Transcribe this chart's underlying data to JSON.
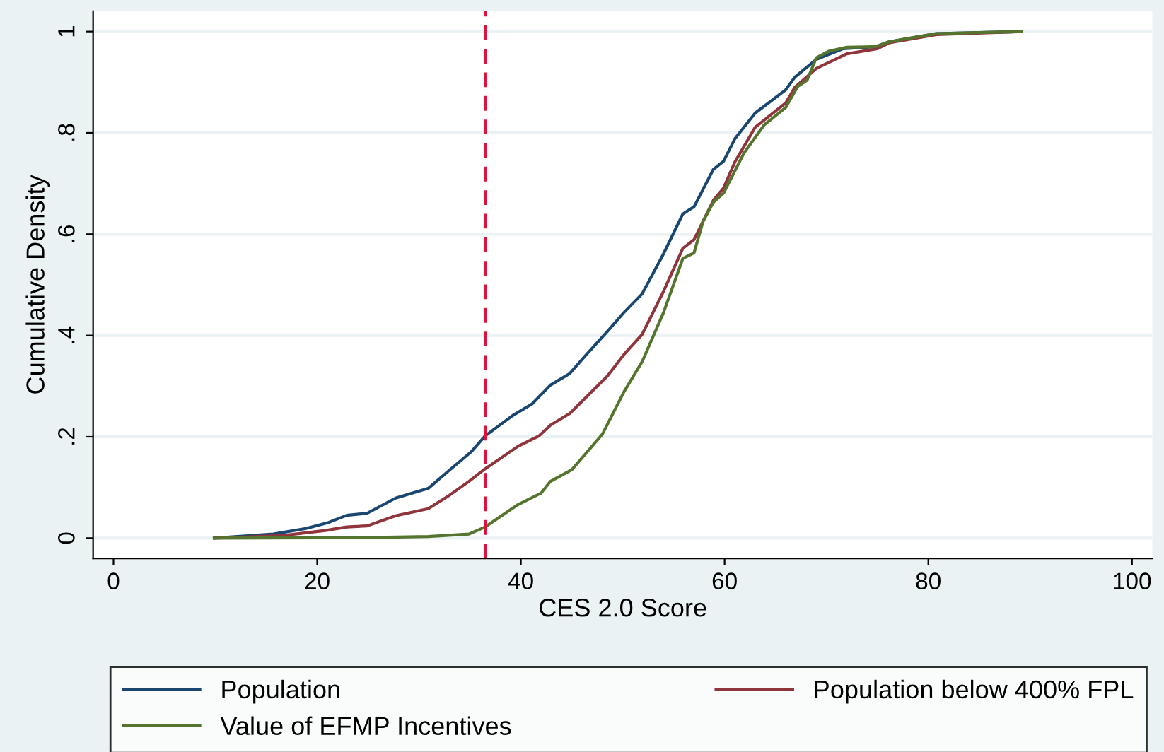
{
  "chart_data": {
    "type": "line",
    "xlabel": "CES 2.0 Score",
    "ylabel": "Cumulative Density",
    "xlim": [
      -2,
      102
    ],
    "xticks": [
      0,
      20,
      40,
      60,
      80,
      100
    ],
    "ylim": [
      -0.04,
      1.04
    ],
    "yticks": [
      0,
      {
        "value": 0.2,
        "label": ".2"
      },
      {
        "value": 0.4,
        "label": ".4"
      },
      {
        "value": 0.6,
        "label": ".6"
      },
      {
        "value": 0.8,
        "label": ".8"
      },
      1
    ],
    "grid": "y",
    "legend": "bottom",
    "marker": "none",
    "line_style": "solid",
    "ref_lines": [
      {
        "axis": "x",
        "value": 36.5,
        "color": "#dc143c",
        "line_style": "dashed"
      }
    ],
    "series": [
      {
        "name": "Population",
        "color": "#1a476f",
        "x": [
          9.9,
          15.7,
          18.9,
          21,
          22.9,
          24.9,
          27.7,
          30.9,
          32.8,
          35.1,
          36.5,
          39.2,
          41.1,
          42.9,
          44.8,
          46.2,
          48.5,
          50.1,
          51.9,
          54,
          55.9,
          57,
          58.9,
          59.9,
          61,
          63,
          66,
          66.9,
          69,
          71.6,
          74.8,
          76.2,
          80.8,
          89.1
        ],
        "values": [
          0,
          0.008,
          0.019,
          0.03,
          0.045,
          0.049,
          0.079,
          0.098,
          0.131,
          0.17,
          0.202,
          0.242,
          0.265,
          0.302,
          0.325,
          0.357,
          0.408,
          0.445,
          0.482,
          0.561,
          0.64,
          0.654,
          0.728,
          0.744,
          0.788,
          0.839,
          0.885,
          0.91,
          0.945,
          0.966,
          0.97,
          0.98,
          0.996,
          1.0
        ]
      },
      {
        "name": "Population below 400% FPL",
        "color": "#90353b",
        "x": [
          9.9,
          16.6,
          20.8,
          22.9,
          24.9,
          27.7,
          30.9,
          32.8,
          34.9,
          36.5,
          39.7,
          41.8,
          42.9,
          44.8,
          46.2,
          48.5,
          50.1,
          51.9,
          54,
          55.9,
          57,
          58.9,
          59.9,
          61,
          63,
          66,
          66.9,
          69,
          72,
          75,
          76.2,
          80.8,
          89.1
        ],
        "values": [
          0,
          0.005,
          0.015,
          0.022,
          0.024,
          0.044,
          0.058,
          0.082,
          0.112,
          0.137,
          0.181,
          0.202,
          0.223,
          0.246,
          0.274,
          0.32,
          0.362,
          0.402,
          0.487,
          0.572,
          0.589,
          0.667,
          0.691,
          0.742,
          0.811,
          0.859,
          0.89,
          0.927,
          0.956,
          0.966,
          0.978,
          0.994,
          1.0
        ]
      },
      {
        "name": "Value of EFMP Incentives",
        "color": "#55752f",
        "x": [
          9.9,
          24.9,
          30.9,
          34.9,
          36.5,
          39.7,
          42,
          42.9,
          45,
          48,
          50.1,
          51.9,
          54,
          55.9,
          57,
          57.9,
          58.9,
          59.9,
          61.9,
          63.9,
          66,
          67.2,
          68.1,
          69,
          70.2,
          72,
          74.8,
          76.2,
          80.8,
          89.1
        ],
        "values": [
          0,
          0.001,
          0.003,
          0.008,
          0.022,
          0.066,
          0.089,
          0.112,
          0.135,
          0.205,
          0.288,
          0.348,
          0.445,
          0.552,
          0.563,
          0.626,
          0.663,
          0.681,
          0.76,
          0.816,
          0.85,
          0.892,
          0.904,
          0.948,
          0.961,
          0.969,
          0.97,
          0.98,
          0.996,
          1.0
        ]
      }
    ]
  }
}
